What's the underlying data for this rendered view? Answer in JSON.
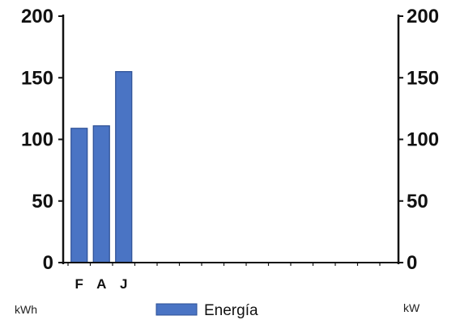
{
  "chart_data": {
    "type": "bar",
    "categories": [
      "F",
      "A",
      "J"
    ],
    "series": [
      {
        "name": "Energía",
        "values": [
          109,
          111,
          155
        ],
        "color": "#4a74c4"
      }
    ],
    "left_axis": {
      "unit": "kWh",
      "ylim": [
        0,
        200
      ],
      "ticks": [
        0,
        50,
        100,
        150,
        200
      ]
    },
    "right_axis": {
      "unit": "kW",
      "ylim": [
        0,
        200
      ],
      "ticks": [
        0,
        50,
        100,
        150,
        200
      ]
    },
    "x_slots": 15,
    "grid": false,
    "legend_position": "bottom-center"
  }
}
